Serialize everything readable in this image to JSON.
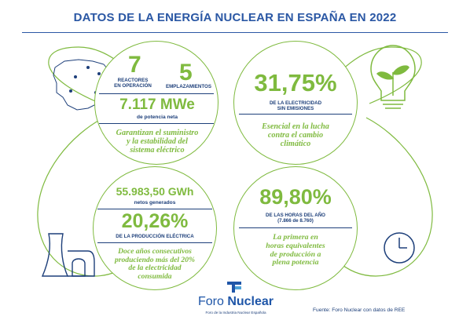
{
  "header": {
    "title": "DATOS DE LA ENERGÍA NUCLEAR EN ESPAÑA EN 2022"
  },
  "colors": {
    "green": "#7fba3f",
    "navy": "#1d3f7a",
    "blue": "#2a57a4"
  },
  "icons": [
    "spain-map-icon",
    "lightbulb-plant-icon",
    "cooling-tower-icon",
    "clock-icon",
    "foro-nuclear-logo-icon"
  ],
  "stats": {
    "reactors": {
      "value": "7",
      "label_line1": "REACTORES",
      "label_line2": "EN OPERACIÓN"
    },
    "sites": {
      "value": "5",
      "label": "EMPLAZAMIENTOS"
    },
    "capacity": {
      "value": "7.117 MWe",
      "label": "de potencia neta"
    },
    "supply_note": [
      "Garantizan el suministro",
      "y la estabilidad del",
      "sistema eléctrico"
    ],
    "emission_free": {
      "value": "31,75%",
      "label_line1": "DE LA ELECTRICIDAD",
      "label_line2": "SIN EMISIONES"
    },
    "climate_note": [
      "Esencial en la lucha",
      "contra el cambio",
      "climático"
    ],
    "generation": {
      "value": "55.983,50 GWh",
      "label": "netos generados"
    },
    "production_share": {
      "value": "20,26%",
      "label": "DE LA PRODUCCIÓN ELÉCTRICA"
    },
    "production_note": [
      "Doce años consecutivos",
      "produciendo más del 20%",
      "de la electricidad",
      "consumida"
    ],
    "hours": {
      "value": "89,80%",
      "label_line1": "DE LAS HORAS DEL AÑO",
      "label_line2": "(7.866 de 8.760)"
    },
    "hours_note": [
      "La primera en",
      "horas equivalentes",
      "de producción a",
      "plena potencia"
    ]
  },
  "footer": {
    "logo_word1": "Foro",
    "logo_word2": "Nuclear",
    "logo_tagline": "Foro de la Industria Nuclear Española",
    "source": "Fuente: Foro Nuclear con datos de REE"
  }
}
